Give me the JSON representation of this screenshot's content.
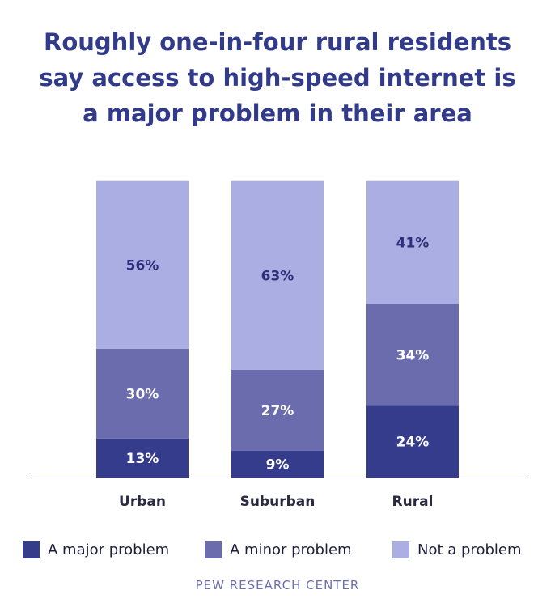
{
  "title_lines": [
    "Roughly one-in-four rural residents",
    "say access to high-speed internet is",
    "a major problem in their area"
  ],
  "chart_data": {
    "type": "bar",
    "stacked": true,
    "categories": [
      "Urban",
      "Suburban",
      "Rural"
    ],
    "series": [
      {
        "name": "A major problem",
        "values": [
          13,
          9,
          24
        ],
        "labels": [
          "13%",
          "9%",
          "24%"
        ],
        "color": "#363c8c"
      },
      {
        "name": "A minor problem",
        "values": [
          30,
          27,
          34
        ],
        "labels": [
          "30%",
          "27%",
          "34%"
        ],
        "color": "#6a6cae"
      },
      {
        "name": "Not a problem",
        "values": [
          56,
          63,
          41
        ],
        "labels": [
          "56%",
          "63%",
          "41%"
        ],
        "color": "#aaaee3"
      }
    ],
    "value_unit": "%",
    "axis_visible": false,
    "grid": false,
    "legend_position": "bottom"
  },
  "label_colors": {
    "on_dark": "#ffffff",
    "on_light": "#2e2e7a"
  },
  "source": "PEW RESEARCH CENTER"
}
